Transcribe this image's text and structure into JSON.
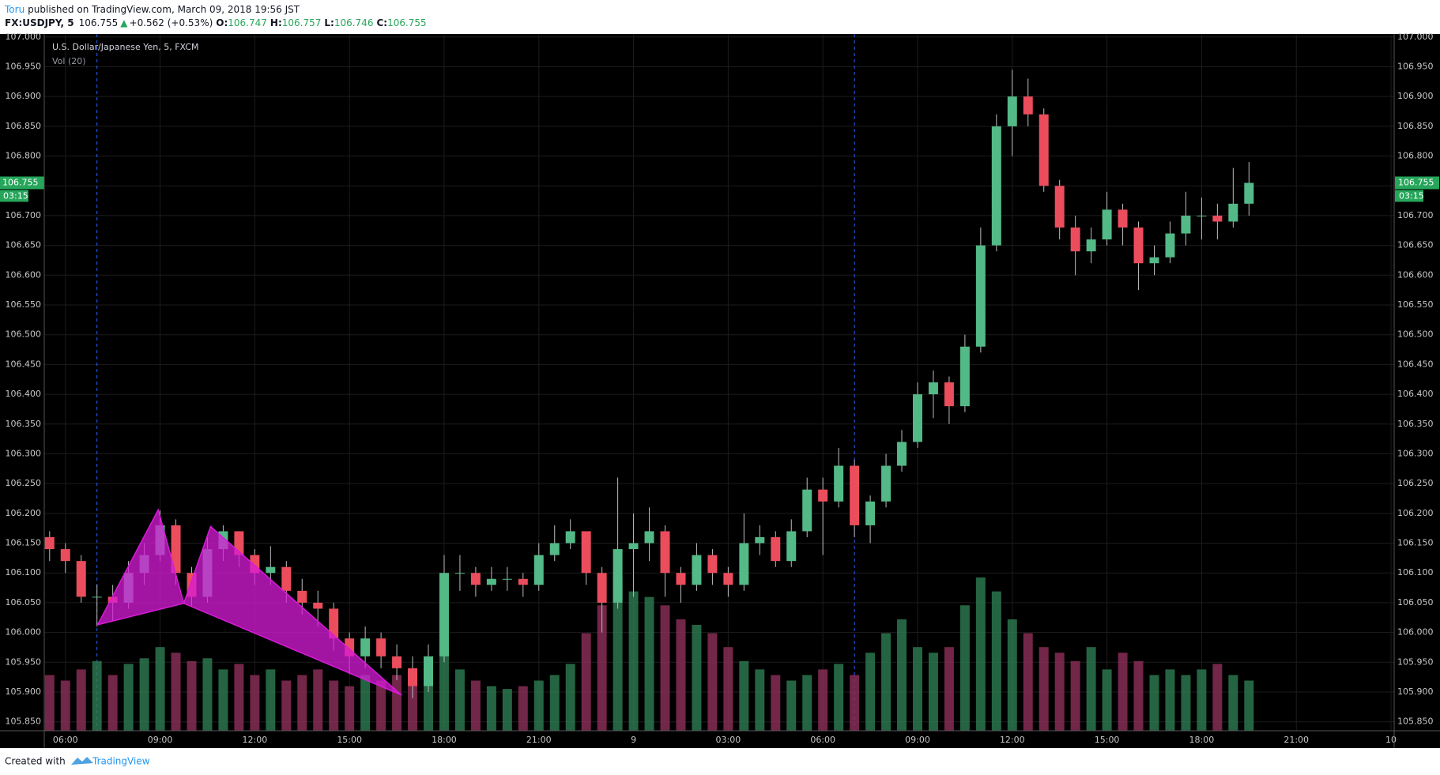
{
  "header": {
    "author": "Toru",
    "published": "published on TradingView.com, March 09, 2018 19:56 JST",
    "symbol": "FX:USDJPY, 5",
    "price": "106.755",
    "arrow": "▲",
    "change": "+0.562 (+0.53%)",
    "ohlc": [
      {
        "label": "O:",
        "value": "106.747"
      },
      {
        "label": "H:",
        "value": "106.757"
      },
      {
        "label": "L:",
        "value": "106.746"
      },
      {
        "label": "C:",
        "value": "106.755"
      }
    ]
  },
  "footer": {
    "text": "Created with",
    "brand": "TradingView"
  },
  "chart_data": {
    "type": "candlestick",
    "title": "U.S. Dollar/Japanese Yen, 5, FXCM",
    "volume_label": "Vol (20)",
    "grid": true,
    "up_color": "#53b987",
    "down_color": "#eb4d5c",
    "wick_color": "#bdbdbd",
    "volume_up_color": "#2e7d52",
    "volume_down_color": "#8e2f5a",
    "x": [
      5.5,
      6,
      6.5,
      7,
      7.5,
      8,
      8.5,
      9,
      9.5,
      10,
      10.5,
      11,
      11.5,
      12,
      12.5,
      13,
      13.5,
      14,
      14.5,
      15,
      15.5,
      16,
      16.5,
      17,
      17.5,
      18,
      18.5,
      19,
      19.5,
      20,
      20.5,
      21,
      21.5,
      22,
      22.5,
      23,
      23.5,
      24,
      24.5,
      25,
      25.5,
      26,
      26.5,
      27,
      27.5,
      28,
      28.5,
      29,
      29.5,
      30,
      30.5,
      31,
      31.5,
      32,
      32.5,
      33,
      33.5,
      34,
      34.5,
      35,
      35.5,
      36,
      36.5,
      37,
      37.5,
      38,
      38.5,
      39,
      39.5,
      40,
      40.5,
      41,
      41.5,
      42,
      42.5,
      43,
      43.5
    ],
    "open": [
      106.16,
      106.14,
      106.12,
      106.06,
      106.06,
      106.05,
      106.1,
      106.13,
      106.18,
      106.1,
      106.06,
      106.14,
      106.17,
      106.13,
      106.1,
      106.11,
      106.07,
      106.05,
      106.04,
      105.99,
      105.96,
      105.99,
      105.96,
      105.94,
      105.91,
      105.96,
      106.1,
      106.1,
      106.08,
      106.09,
      106.09,
      106.08,
      106.13,
      106.15,
      106.17,
      106.1,
      106.05,
      106.14,
      106.15,
      106.17,
      106.1,
      106.08,
      106.13,
      106.1,
      106.08,
      106.15,
      106.16,
      106.12,
      106.17,
      106.24,
      106.22,
      106.28,
      106.18,
      106.22,
      106.28,
      106.32,
      106.4,
      106.42,
      106.38,
      106.48,
      106.65,
      106.85,
      106.9,
      106.87,
      106.75,
      106.68,
      106.64,
      106.66,
      106.71,
      106.68,
      106.62,
      106.63,
      106.67,
      106.7,
      106.7,
      106.69,
      106.72
    ],
    "high": [
      106.17,
      106.15,
      106.13,
      106.08,
      106.08,
      106.12,
      106.15,
      106.205,
      106.19,
      106.11,
      106.16,
      106.18,
      106.17,
      106.14,
      106.145,
      106.12,
      106.09,
      106.07,
      106.05,
      106.0,
      106.01,
      106.0,
      105.98,
      105.96,
      105.98,
      106.13,
      106.13,
      106.11,
      106.11,
      106.11,
      106.1,
      106.15,
      106.18,
      106.19,
      106.17,
      106.11,
      106.26,
      106.2,
      106.21,
      106.18,
      106.11,
      106.15,
      106.14,
      106.11,
      106.2,
      106.18,
      106.17,
      106.19,
      106.26,
      106.26,
      106.31,
      106.29,
      106.23,
      106.3,
      106.34,
      106.42,
      106.44,
      106.43,
      106.5,
      106.68,
      106.87,
      106.945,
      106.93,
      106.88,
      106.76,
      106.7,
      106.68,
      106.74,
      106.72,
      106.69,
      106.65,
      106.69,
      106.74,
      106.73,
      106.72,
      106.78,
      106.79
    ],
    "low": [
      106.12,
      106.1,
      106.05,
      106.01,
      106.02,
      106.04,
      106.08,
      106.12,
      106.08,
      106.045,
      106.05,
      106.12,
      106.11,
      106.08,
      106.08,
      106.05,
      106.03,
      106.01,
      105.97,
      105.93,
      105.94,
      105.94,
      105.92,
      105.89,
      105.9,
      105.95,
      106.07,
      106.06,
      106.07,
      106.07,
      106.06,
      106.07,
      106.12,
      106.14,
      106.08,
      106.0,
      106.04,
      106.06,
      106.12,
      106.06,
      106.05,
      106.07,
      106.08,
      106.06,
      106.07,
      106.13,
      106.11,
      106.11,
      106.16,
      106.13,
      106.21,
      106.16,
      106.15,
      106.21,
      106.27,
      106.31,
      106.36,
      106.35,
      106.37,
      106.47,
      106.64,
      106.8,
      106.85,
      106.74,
      106.66,
      106.6,
      106.62,
      106.65,
      106.65,
      106.575,
      106.6,
      106.62,
      106.65,
      106.66,
      106.66,
      106.68,
      106.7
    ],
    "close": [
      106.14,
      106.12,
      106.06,
      106.06,
      106.05,
      106.1,
      106.13,
      106.18,
      106.1,
      106.06,
      106.14,
      106.17,
      106.13,
      106.1,
      106.11,
      106.07,
      106.05,
      106.04,
      105.99,
      105.96,
      105.99,
      105.96,
      105.94,
      105.91,
      105.96,
      106.1,
      106.1,
      106.08,
      106.09,
      106.09,
      106.08,
      106.13,
      106.15,
      106.17,
      106.1,
      106.05,
      106.14,
      106.15,
      106.17,
      106.1,
      106.08,
      106.13,
      106.1,
      106.08,
      106.15,
      106.16,
      106.12,
      106.17,
      106.24,
      106.22,
      106.28,
      106.18,
      106.22,
      106.28,
      106.32,
      106.4,
      106.42,
      106.38,
      106.48,
      106.65,
      106.85,
      106.9,
      106.87,
      106.75,
      106.68,
      106.64,
      106.66,
      106.71,
      106.68,
      106.62,
      106.63,
      106.67,
      106.7,
      106.7,
      106.69,
      106.72,
      106.755
    ],
    "volume": [
      20,
      18,
      22,
      25,
      20,
      24,
      26,
      30,
      28,
      25,
      26,
      22,
      24,
      20,
      22,
      18,
      20,
      22,
      18,
      16,
      20,
      18,
      20,
      22,
      24,
      30,
      22,
      18,
      16,
      15,
      16,
      18,
      20,
      24,
      35,
      45,
      55,
      50,
      48,
      45,
      40,
      38,
      35,
      30,
      25,
      22,
      20,
      18,
      20,
      22,
      24,
      20,
      28,
      35,
      40,
      30,
      28,
      30,
      45,
      55,
      50,
      40,
      35,
      30,
      28,
      25,
      30,
      22,
      28,
      25,
      20,
      22,
      20,
      22,
      24,
      20,
      18
    ],
    "vlim": [
      0,
      250
    ],
    "xlim": [
      5.33,
      48.1
    ],
    "ylim": [
      105.835,
      107.005
    ],
    "xticks": [
      {
        "value": 6,
        "label": "06:00"
      },
      {
        "value": 9,
        "label": "09:00"
      },
      {
        "value": 12,
        "label": "12:00"
      },
      {
        "value": 15,
        "label": "15:00"
      },
      {
        "value": 18,
        "label": "18:00"
      },
      {
        "value": 21,
        "label": "21:00"
      },
      {
        "value": 24,
        "label": "9"
      },
      {
        "value": 27,
        "label": "03:00"
      },
      {
        "value": 30,
        "label": "06:00"
      },
      {
        "value": 33,
        "label": "09:00"
      },
      {
        "value": 36,
        "label": "12:00"
      },
      {
        "value": 39,
        "label": "15:00"
      },
      {
        "value": 42,
        "label": "18:00"
      },
      {
        "value": 45,
        "label": "21:00"
      },
      {
        "value": 48,
        "label": "10"
      }
    ],
    "yticks": [
      {
        "value": 105.85,
        "label": "105.850"
      },
      {
        "value": 105.9,
        "label": "105.900"
      },
      {
        "value": 105.95,
        "label": "105.950"
      },
      {
        "value": 106,
        "label": "106.000"
      },
      {
        "value": 106.05,
        "label": "106.050"
      },
      {
        "value": 106.1,
        "label": "106.100"
      },
      {
        "value": 106.15,
        "label": "106.150"
      },
      {
        "value": 106.2,
        "label": "106.200"
      },
      {
        "value": 106.25,
        "label": "106.250"
      },
      {
        "value": 106.3,
        "label": "106.300"
      },
      {
        "value": 106.35,
        "label": "106.350"
      },
      {
        "value": 106.4,
        "label": "106.400"
      },
      {
        "value": 106.45,
        "label": "106.450"
      },
      {
        "value": 106.5,
        "label": "106.500"
      },
      {
        "value": 106.55,
        "label": "106.550"
      },
      {
        "value": 106.6,
        "label": "106.600"
      },
      {
        "value": 106.65,
        "label": "106.650"
      },
      {
        "value": 106.7,
        "label": "106.700"
      },
      {
        "value": 106.75,
        "label": "106.750"
      },
      {
        "value": 106.8,
        "label": "106.800"
      },
      {
        "value": 106.85,
        "label": "106.850"
      },
      {
        "value": 106.9,
        "label": "106.900"
      },
      {
        "value": 106.95,
        "label": "106.950"
      },
      {
        "value": 107,
        "label": "107.000"
      }
    ],
    "session_breaks": [
      7,
      31
    ],
    "pattern": {
      "x": [
        7.02,
        8.94,
        9.75,
        10.6,
        16.65
      ],
      "y": [
        106.013,
        106.206,
        106.049,
        106.178,
        105.895
      ],
      "color": "#d81bd8"
    },
    "last_price": {
      "value": 106.755,
      "label": "106.755"
    },
    "countdown": "03:15"
  }
}
